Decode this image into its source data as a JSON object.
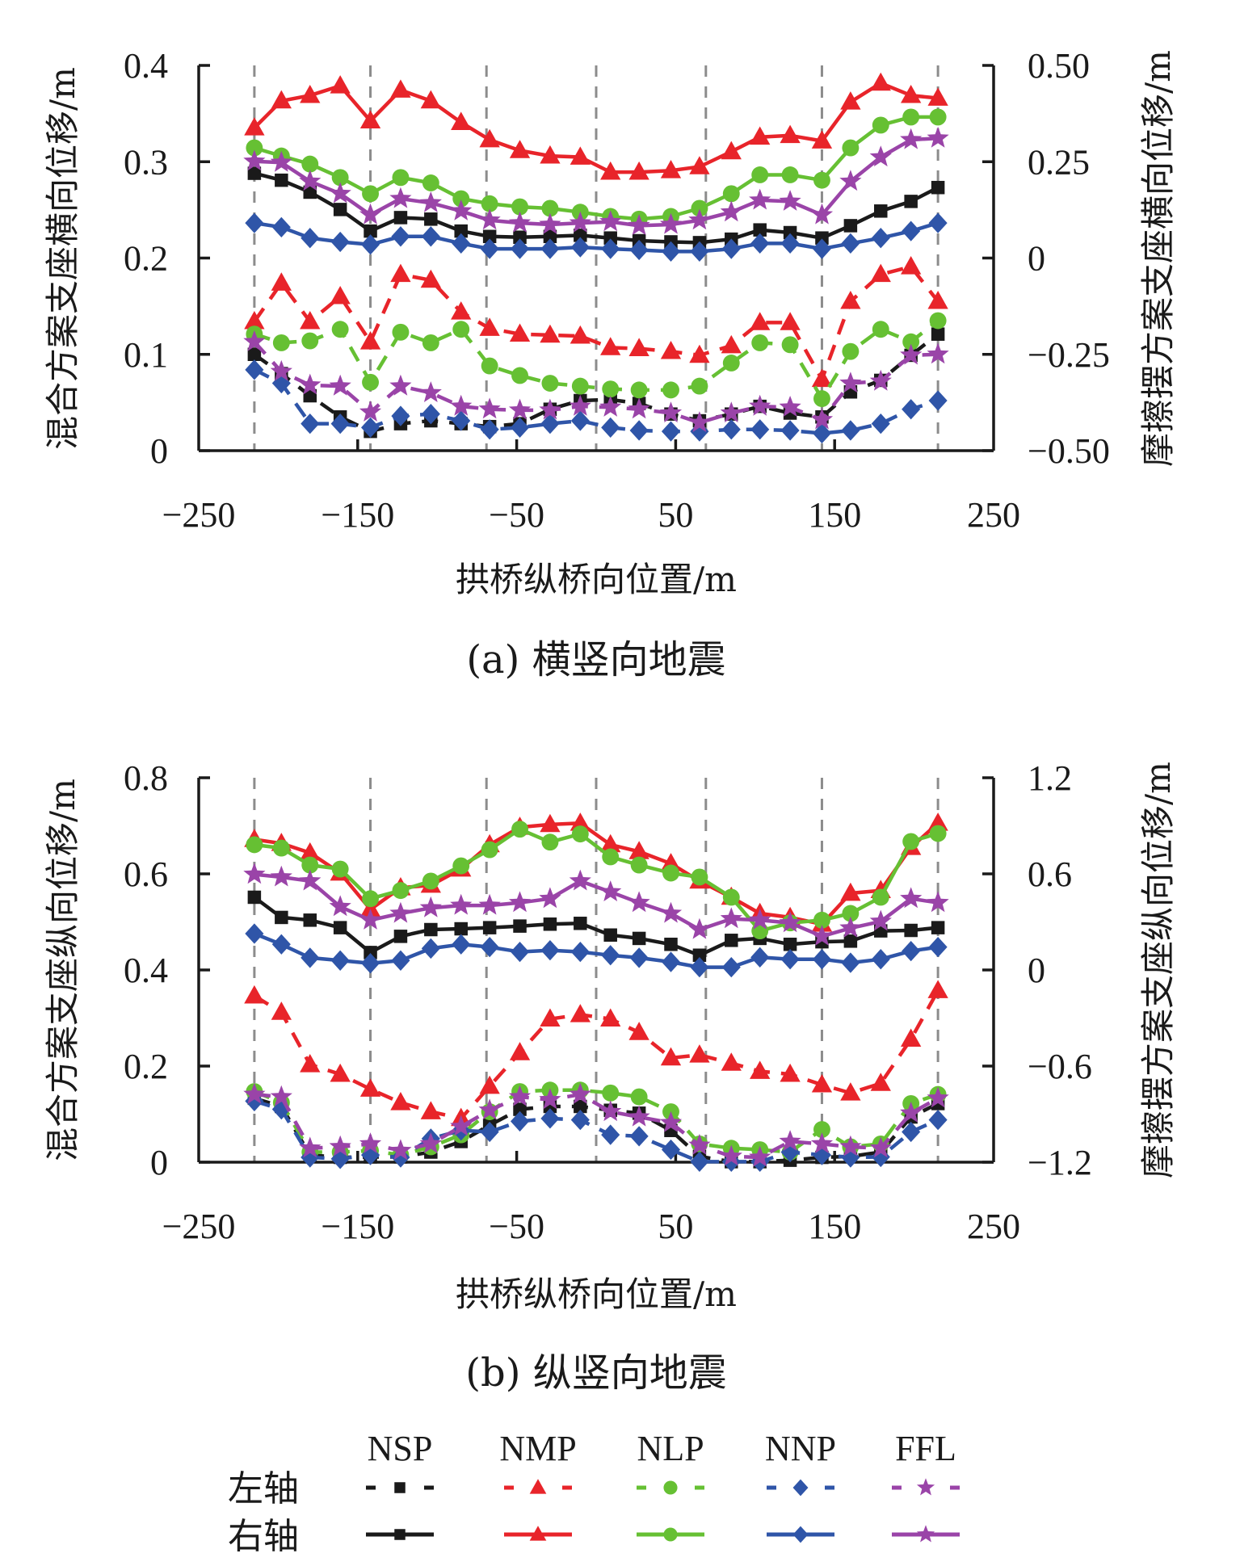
{
  "colors": {
    "NSP": "#1a1a1a",
    "NMP": "#e8242a",
    "NLP": "#66c033",
    "NNP": "#2f55a8",
    "FFL": "#9a44a8",
    "axis": "#1a1a1a",
    "grid_dashed": "#8c8c8c"
  },
  "legend": {
    "columns": [
      "NSP",
      "NMP",
      "NLP",
      "NNP",
      "FFL"
    ],
    "rows": [
      {
        "label": "左轴",
        "style": "dashed"
      },
      {
        "label": "右轴",
        "style": "solid"
      }
    ],
    "markers": {
      "NSP": "square",
      "NMP": "triangle",
      "NLP": "circle",
      "NNP": "diamond",
      "FFL": "star"
    }
  },
  "chart_data": [
    {
      "type": "line",
      "id": "a",
      "title": "(a) 横竖向地震",
      "xlabel": "拱桥纵桥向位置/m",
      "ylabel_left": "混合方案支座横向位移/m",
      "ylabel_right": "摩擦摆方案支座横向位移/m",
      "xlim": [
        -250,
        250
      ],
      "xticks": [
        -250,
        -150,
        -50,
        50,
        150,
        250
      ],
      "xtick_labels": [
        "−250",
        "−150",
        "−50",
        "50",
        "150",
        "250"
      ],
      "ylim_left": [
        0,
        0.4
      ],
      "yticks_left": [
        0,
        0.1,
        0.2,
        0.3,
        0.4
      ],
      "ytick_labels_left": [
        "0",
        "0.1",
        "0.2",
        "0.3",
        "0.4"
      ],
      "ylim_right": [
        -0.5,
        0.5
      ],
      "yticks_right": [
        -0.5,
        -0.25,
        0,
        0.25,
        0.5
      ],
      "ytick_labels_right": [
        "−0.50",
        "−0.25",
        "0",
        "0.25",
        "0.50"
      ],
      "vlines_dashed": [
        -215,
        -142,
        -69,
        0,
        69,
        142,
        215
      ],
      "grid": false,
      "legend": "bottom",
      "x": [
        -215,
        -198,
        -180,
        -161,
        -142,
        -123,
        -104,
        -85,
        -67,
        -48,
        -29,
        -10,
        9,
        27,
        47,
        65,
        85,
        103,
        122,
        142,
        160,
        179,
        198,
        215
      ],
      "series": [
        {
          "name": "NSP",
          "axis": "left",
          "style": "dashed",
          "values": [
            0.1,
            0.08,
            0.057,
            0.035,
            0.02,
            0.028,
            0.031,
            0.028,
            0.025,
            0.028,
            0.043,
            0.052,
            0.053,
            0.049,
            0.038,
            0.031,
            0.038,
            0.046,
            0.039,
            0.035,
            0.061,
            0.073,
            0.099,
            0.121
          ]
        },
        {
          "name": "NMP",
          "axis": "left",
          "style": "dashed",
          "values": [
            0.134,
            0.174,
            0.134,
            0.16,
            0.113,
            0.183,
            0.177,
            0.144,
            0.127,
            0.121,
            0.12,
            0.119,
            0.107,
            0.106,
            0.103,
            0.099,
            0.109,
            0.133,
            0.133,
            0.074,
            0.155,
            0.183,
            0.191,
            0.155
          ]
        },
        {
          "name": "NLP",
          "axis": "left",
          "style": "dashed",
          "values": [
            0.121,
            0.112,
            0.114,
            0.126,
            0.071,
            0.123,
            0.112,
            0.126,
            0.088,
            0.078,
            0.07,
            0.067,
            0.064,
            0.063,
            0.063,
            0.067,
            0.091,
            0.112,
            0.11,
            0.054,
            0.103,
            0.126,
            0.113,
            0.135
          ]
        },
        {
          "name": "NNP",
          "axis": "left",
          "style": "dashed",
          "values": [
            0.084,
            0.07,
            0.028,
            0.028,
            0.024,
            0.036,
            0.038,
            0.031,
            0.022,
            0.024,
            0.028,
            0.031,
            0.024,
            0.021,
            0.02,
            0.02,
            0.022,
            0.022,
            0.021,
            0.018,
            0.021,
            0.028,
            0.043,
            0.052
          ]
        },
        {
          "name": "FFL",
          "axis": "left",
          "style": "dashed",
          "values": [
            0.113,
            0.082,
            0.068,
            0.067,
            0.04,
            0.067,
            0.06,
            0.046,
            0.043,
            0.042,
            0.042,
            0.046,
            0.045,
            0.043,
            0.039,
            0.029,
            0.039,
            0.046,
            0.045,
            0.032,
            0.07,
            0.072,
            0.099,
            0.1
          ]
        },
        {
          "name": "NSP",
          "axis": "right",
          "style": "solid",
          "values": [
            0.22,
            0.202,
            0.171,
            0.126,
            0.07,
            0.105,
            0.101,
            0.07,
            0.056,
            0.054,
            0.056,
            0.059,
            0.052,
            0.045,
            0.042,
            0.04,
            0.049,
            0.073,
            0.066,
            0.052,
            0.084,
            0.122,
            0.147,
            0.183
          ]
        },
        {
          "name": "NMP",
          "axis": "right",
          "style": "solid",
          "values": [
            0.338,
            0.408,
            0.422,
            0.447,
            0.356,
            0.436,
            0.408,
            0.352,
            0.307,
            0.279,
            0.265,
            0.262,
            0.223,
            0.223,
            0.227,
            0.237,
            0.276,
            0.314,
            0.318,
            0.304,
            0.405,
            0.454,
            0.422,
            0.415
          ]
        },
        {
          "name": "NLP",
          "axis": "right",
          "style": "solid",
          "values": [
            0.286,
            0.265,
            0.244,
            0.209,
            0.167,
            0.209,
            0.195,
            0.154,
            0.141,
            0.133,
            0.129,
            0.119,
            0.108,
            0.101,
            0.108,
            0.129,
            0.167,
            0.216,
            0.216,
            0.202,
            0.286,
            0.345,
            0.366,
            0.366
          ]
        },
        {
          "name": "NNP",
          "axis": "right",
          "style": "solid",
          "values": [
            0.091,
            0.08,
            0.052,
            0.042,
            0.035,
            0.056,
            0.056,
            0.038,
            0.024,
            0.024,
            0.024,
            0.028,
            0.024,
            0.021,
            0.017,
            0.017,
            0.024,
            0.038,
            0.038,
            0.024,
            0.038,
            0.052,
            0.07,
            0.091
          ]
        },
        {
          "name": "FFL",
          "axis": "right",
          "style": "solid",
          "values": [
            0.251,
            0.248,
            0.199,
            0.167,
            0.112,
            0.154,
            0.143,
            0.122,
            0.098,
            0.091,
            0.087,
            0.091,
            0.094,
            0.084,
            0.087,
            0.098,
            0.119,
            0.15,
            0.147,
            0.112,
            0.199,
            0.262,
            0.307,
            0.311
          ]
        }
      ]
    },
    {
      "type": "line",
      "id": "b",
      "title": "(b) 纵竖向地震",
      "xlabel": "拱桥纵桥向位置/m",
      "ylabel_left": "混合方案支座纵向位移/m",
      "ylabel_right": "摩擦摆方案支座纵向位移/m",
      "xlim": [
        -250,
        250
      ],
      "xticks": [
        -250,
        -150,
        -50,
        50,
        150,
        250
      ],
      "xtick_labels": [
        "−250",
        "−150",
        "−50",
        "50",
        "150",
        "250"
      ],
      "ylim_left": [
        0,
        0.8
      ],
      "yticks_left": [
        0,
        0.2,
        0.4,
        0.6,
        0.8
      ],
      "ytick_labels_left": [
        "0",
        "0.2",
        "0.4",
        "0.6",
        "0.8"
      ],
      "ylim_right": [
        -1.2,
        1.2
      ],
      "yticks_right": [
        -1.2,
        -0.6,
        0,
        0.6,
        1.2
      ],
      "ytick_labels_right": [
        "−1.2",
        "−0.6",
        "0",
        "0.6",
        "1.2"
      ],
      "vlines_dashed": [
        -215,
        -142,
        -69,
        0,
        69,
        142,
        215
      ],
      "grid": false,
      "legend": "bottom",
      "x": [
        -215,
        -198,
        -180,
        -161,
        -142,
        -123,
        -104,
        -85,
        -67,
        -48,
        -29,
        -10,
        9,
        27,
        47,
        65,
        85,
        103,
        122,
        142,
        160,
        179,
        198,
        215
      ],
      "series": [
        {
          "name": "NSP",
          "axis": "left",
          "style": "dashed",
          "values": [
            0.133,
            0.116,
            0.015,
            0.01,
            0.011,
            0.011,
            0.021,
            0.043,
            0.077,
            0.11,
            0.116,
            0.116,
            0.108,
            0.102,
            0.066,
            0.012,
            0.001,
            0.001,
            0.004,
            0.01,
            0.012,
            0.021,
            0.094,
            0.122
          ]
        },
        {
          "name": "NMP",
          "axis": "left",
          "style": "dashed",
          "values": [
            0.346,
            0.312,
            0.203,
            0.183,
            0.152,
            0.124,
            0.105,
            0.091,
            0.158,
            0.228,
            0.298,
            0.307,
            0.298,
            0.27,
            0.217,
            0.223,
            0.206,
            0.189,
            0.183,
            0.161,
            0.144,
            0.164,
            0.256,
            0.357
          ]
        },
        {
          "name": "NLP",
          "axis": "left",
          "style": "dashed",
          "values": [
            0.147,
            0.124,
            0.021,
            0.021,
            0.024,
            0.015,
            0.032,
            0.057,
            0.105,
            0.147,
            0.15,
            0.15,
            0.144,
            0.136,
            0.105,
            0.038,
            0.029,
            0.026,
            0.021,
            0.068,
            0.032,
            0.038,
            0.122,
            0.141
          ]
        },
        {
          "name": "NNP",
          "axis": "left",
          "style": "dashed",
          "values": [
            0.127,
            0.11,
            0.01,
            0.007,
            0.015,
            0.01,
            0.049,
            0.066,
            0.063,
            0.085,
            0.091,
            0.088,
            0.057,
            0.054,
            0.026,
            0.001,
            0.001,
            0.001,
            0.021,
            0.015,
            0.01,
            0.011,
            0.063,
            0.088
          ]
        },
        {
          "name": "FFL",
          "axis": "left",
          "style": "dashed",
          "values": [
            0.141,
            0.136,
            0.029,
            0.032,
            0.038,
            0.024,
            0.038,
            0.074,
            0.108,
            0.136,
            0.13,
            0.141,
            0.105,
            0.094,
            0.082,
            0.035,
            0.012,
            0.01,
            0.043,
            0.038,
            0.032,
            0.029,
            0.102,
            0.133
          ]
        },
        {
          "name": "NSP",
          "axis": "right",
          "style": "solid",
          "values": [
            0.454,
            0.328,
            0.311,
            0.264,
            0.109,
            0.21,
            0.252,
            0.257,
            0.264,
            0.274,
            0.286,
            0.291,
            0.218,
            0.197,
            0.16,
            0.092,
            0.185,
            0.197,
            0.16,
            0.176,
            0.18,
            0.244,
            0.247,
            0.264
          ]
        },
        {
          "name": "NMP",
          "axis": "right",
          "style": "solid",
          "values": [
            0.815,
            0.79,
            0.731,
            0.605,
            0.378,
            0.513,
            0.529,
            0.63,
            0.782,
            0.891,
            0.908,
            0.916,
            0.782,
            0.739,
            0.664,
            0.555,
            0.454,
            0.353,
            0.328,
            0.286,
            0.479,
            0.496,
            0.765,
            0.916
          ]
        },
        {
          "name": "NLP",
          "axis": "right",
          "style": "solid",
          "values": [
            0.782,
            0.761,
            0.655,
            0.63,
            0.445,
            0.496,
            0.555,
            0.65,
            0.751,
            0.879,
            0.798,
            0.849,
            0.706,
            0.655,
            0.605,
            0.58,
            0.454,
            0.244,
            0.294,
            0.311,
            0.353,
            0.454,
            0.802,
            0.852
          ]
        },
        {
          "name": "NNP",
          "axis": "right",
          "style": "solid",
          "values": [
            0.227,
            0.16,
            0.076,
            0.059,
            0.042,
            0.059,
            0.134,
            0.16,
            0.143,
            0.113,
            0.123,
            0.113,
            0.092,
            0.076,
            0.05,
            0.017,
            0.017,
            0.079,
            0.067,
            0.067,
            0.045,
            0.067,
            0.118,
            0.143
          ]
        },
        {
          "name": "FFL",
          "axis": "right",
          "style": "solid",
          "values": [
            0.597,
            0.58,
            0.555,
            0.395,
            0.311,
            0.353,
            0.387,
            0.403,
            0.403,
            0.42,
            0.445,
            0.555,
            0.487,
            0.42,
            0.353,
            0.252,
            0.319,
            0.311,
            0.294,
            0.21,
            0.261,
            0.303,
            0.445,
            0.42
          ]
        }
      ]
    }
  ]
}
